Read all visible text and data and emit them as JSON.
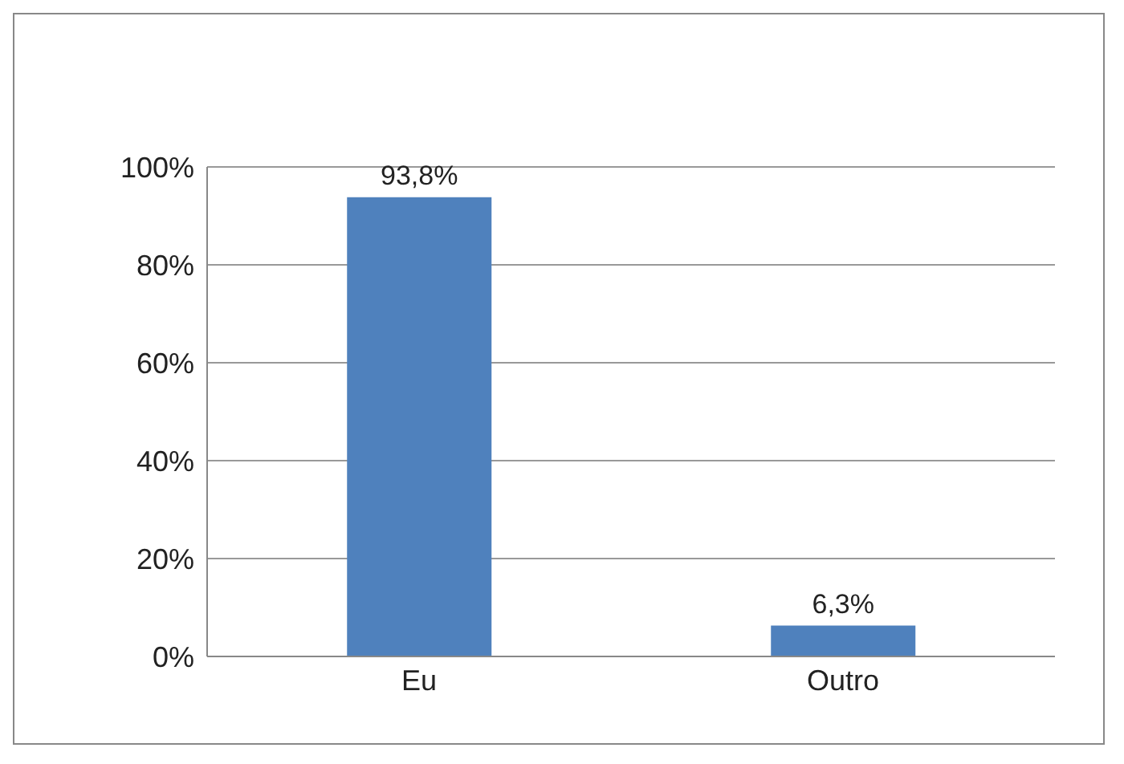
{
  "chart_data": {
    "type": "bar",
    "categories": [
      "Eu",
      "Outro"
    ],
    "values": [
      93.8,
      6.3
    ],
    "value_labels": [
      "93,8%",
      "6,3%"
    ],
    "color": "#4f81bd",
    "ylim": [
      0,
      100
    ],
    "yticks": [
      {
        "value": 0,
        "label": "0%"
      },
      {
        "value": 20,
        "label": "20%"
      },
      {
        "value": 40,
        "label": "40%"
      },
      {
        "value": 60,
        "label": "60%"
      },
      {
        "value": 80,
        "label": "80%"
      },
      {
        "value": 100,
        "label": "100%"
      }
    ],
    "grid": "y",
    "legend": false
  }
}
